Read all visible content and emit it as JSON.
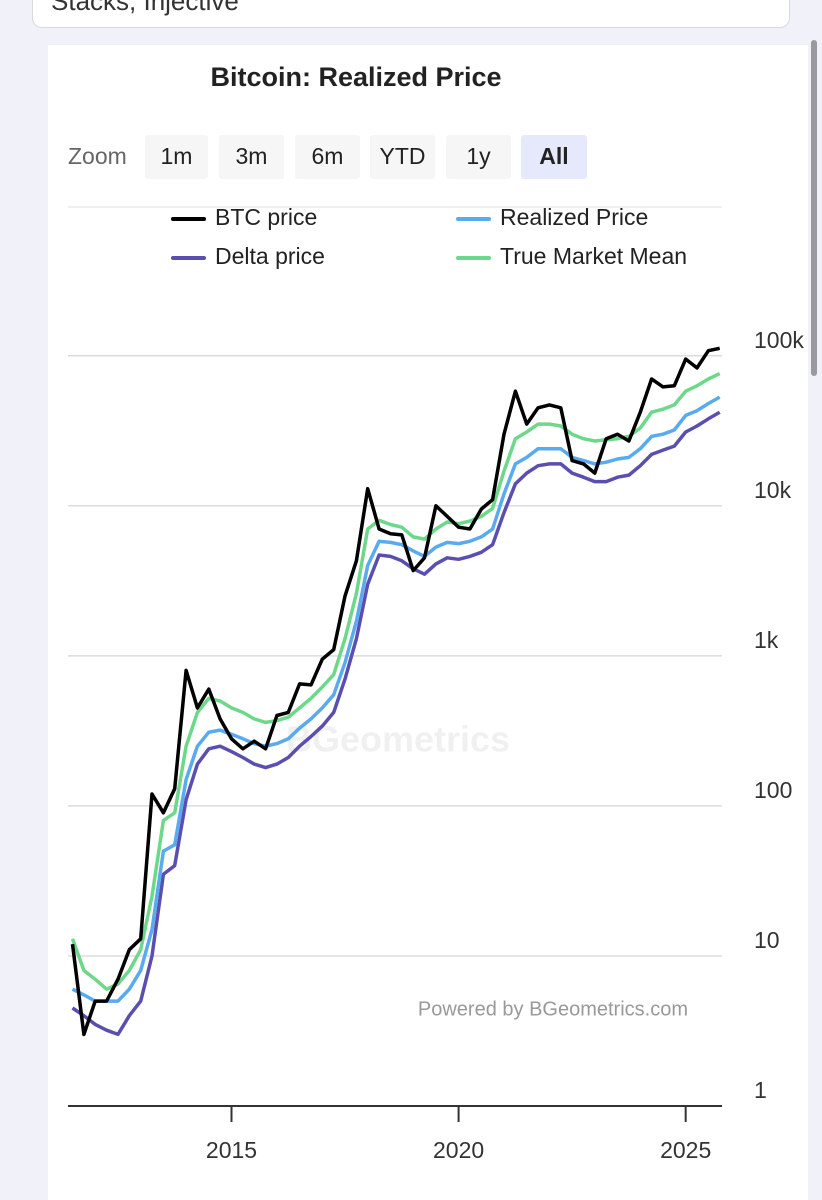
{
  "header": {
    "text": "Stacks, Injective"
  },
  "range_selector": {
    "label": "Zoom",
    "buttons": [
      "1m",
      "3m",
      "6m",
      "YTD",
      "1y",
      "All"
    ],
    "selected": 5
  },
  "chart_data": {
    "type": "line",
    "title": "Bitcoin: Realized Price",
    "credits": "Powered by BGeometrics.com",
    "watermark": "BGeometrics",
    "x": [
      2011.5,
      2011.75,
      2012,
      2012.25,
      2012.5,
      2012.75,
      2013,
      2013.25,
      2013.5,
      2013.75,
      2014,
      2014.25,
      2014.5,
      2014.75,
      2015,
      2015.25,
      2015.5,
      2015.75,
      2016,
      2016.25,
      2016.5,
      2016.75,
      2017,
      2017.25,
      2017.5,
      2017.75,
      2018,
      2018.25,
      2018.5,
      2018.75,
      2019,
      2019.25,
      2019.5,
      2019.75,
      2020,
      2020.25,
      2020.5,
      2020.75,
      2021,
      2021.25,
      2021.5,
      2021.75,
      2022,
      2022.25,
      2022.5,
      2022.75,
      2023,
      2023.25,
      2023.5,
      2023.75,
      2024,
      2024.25,
      2024.5,
      2024.75,
      2025,
      2025.25,
      2025.5,
      2025.75
    ],
    "series": [
      {
        "name": "BTC price",
        "color": "#000000",
        "values": [
          12,
          3,
          5,
          5,
          7,
          11,
          13,
          120,
          90,
          130,
          800,
          450,
          600,
          380,
          280,
          240,
          270,
          240,
          400,
          420,
          650,
          640,
          950,
          1100,
          2500,
          4300,
          13000,
          7000,
          6500,
          6400,
          3700,
          4500,
          10000,
          8500,
          7200,
          7000,
          9500,
          11000,
          30000,
          58000,
          35000,
          45000,
          47000,
          45000,
          20000,
          19000,
          16500,
          28000,
          30000,
          27000,
          42000,
          70000,
          62000,
          63000,
          95000,
          83000,
          108000,
          112000
        ]
      },
      {
        "name": "Realized Price",
        "color": "#5aaaf0",
        "values": [
          6,
          5.5,
          5,
          5,
          5,
          6,
          8,
          15,
          50,
          55,
          150,
          250,
          310,
          320,
          300,
          280,
          260,
          250,
          260,
          280,
          330,
          380,
          450,
          550,
          900,
          1700,
          4000,
          5800,
          5700,
          5500,
          5000,
          4600,
          5300,
          5700,
          5600,
          5800,
          6200,
          7000,
          12000,
          19000,
          21000,
          24000,
          24000,
          24000,
          21000,
          20000,
          19000,
          19500,
          20500,
          21000,
          24000,
          29000,
          30000,
          32000,
          40000,
          43000,
          48000,
          53000
        ]
      },
      {
        "name": "Delta price",
        "color": "#5a4fb0",
        "values": [
          4.5,
          4,
          3.5,
          3.2,
          3,
          4,
          5,
          10,
          35,
          40,
          110,
          190,
          240,
          250,
          230,
          210,
          190,
          180,
          190,
          210,
          250,
          290,
          340,
          420,
          700,
          1300,
          3000,
          4700,
          4600,
          4300,
          3800,
          3500,
          4100,
          4500,
          4400,
          4600,
          4900,
          5500,
          9000,
          14000,
          16500,
          18500,
          19000,
          19000,
          16500,
          15500,
          14500,
          14500,
          15500,
          16000,
          18500,
          22000,
          23500,
          25000,
          31000,
          34000,
          38000,
          42000
        ]
      },
      {
        "name": "True Market Mean",
        "color": "#6ed88a",
        "values": [
          13,
          8,
          7,
          6,
          6.5,
          8,
          11,
          25,
          80,
          90,
          250,
          420,
          520,
          500,
          450,
          420,
          380,
          360,
          370,
          390,
          450,
          520,
          620,
          750,
          1300,
          2600,
          7000,
          8000,
          7500,
          7200,
          6200,
          6000,
          7000,
          7800,
          7600,
          7900,
          8500,
          9600,
          17000,
          28000,
          31000,
          35000,
          35000,
          34000,
          30000,
          28000,
          27000,
          27500,
          28000,
          29000,
          33000,
          42000,
          44000,
          47000,
          58000,
          63000,
          70000,
          76000
        ]
      }
    ],
    "xlim": [
      2011.4,
      2025.8
    ],
    "xticks": [
      2015,
      2020,
      2025
    ],
    "ylim": [
      1,
      250000
    ],
    "log_y": true,
    "grid": true,
    "yticks": [
      1,
      10,
      100,
      {
        "value": 1000,
        "label": "1k"
      },
      {
        "value": 10000,
        "label": "10k"
      },
      {
        "value": 100000,
        "label": "100k"
      }
    ]
  }
}
